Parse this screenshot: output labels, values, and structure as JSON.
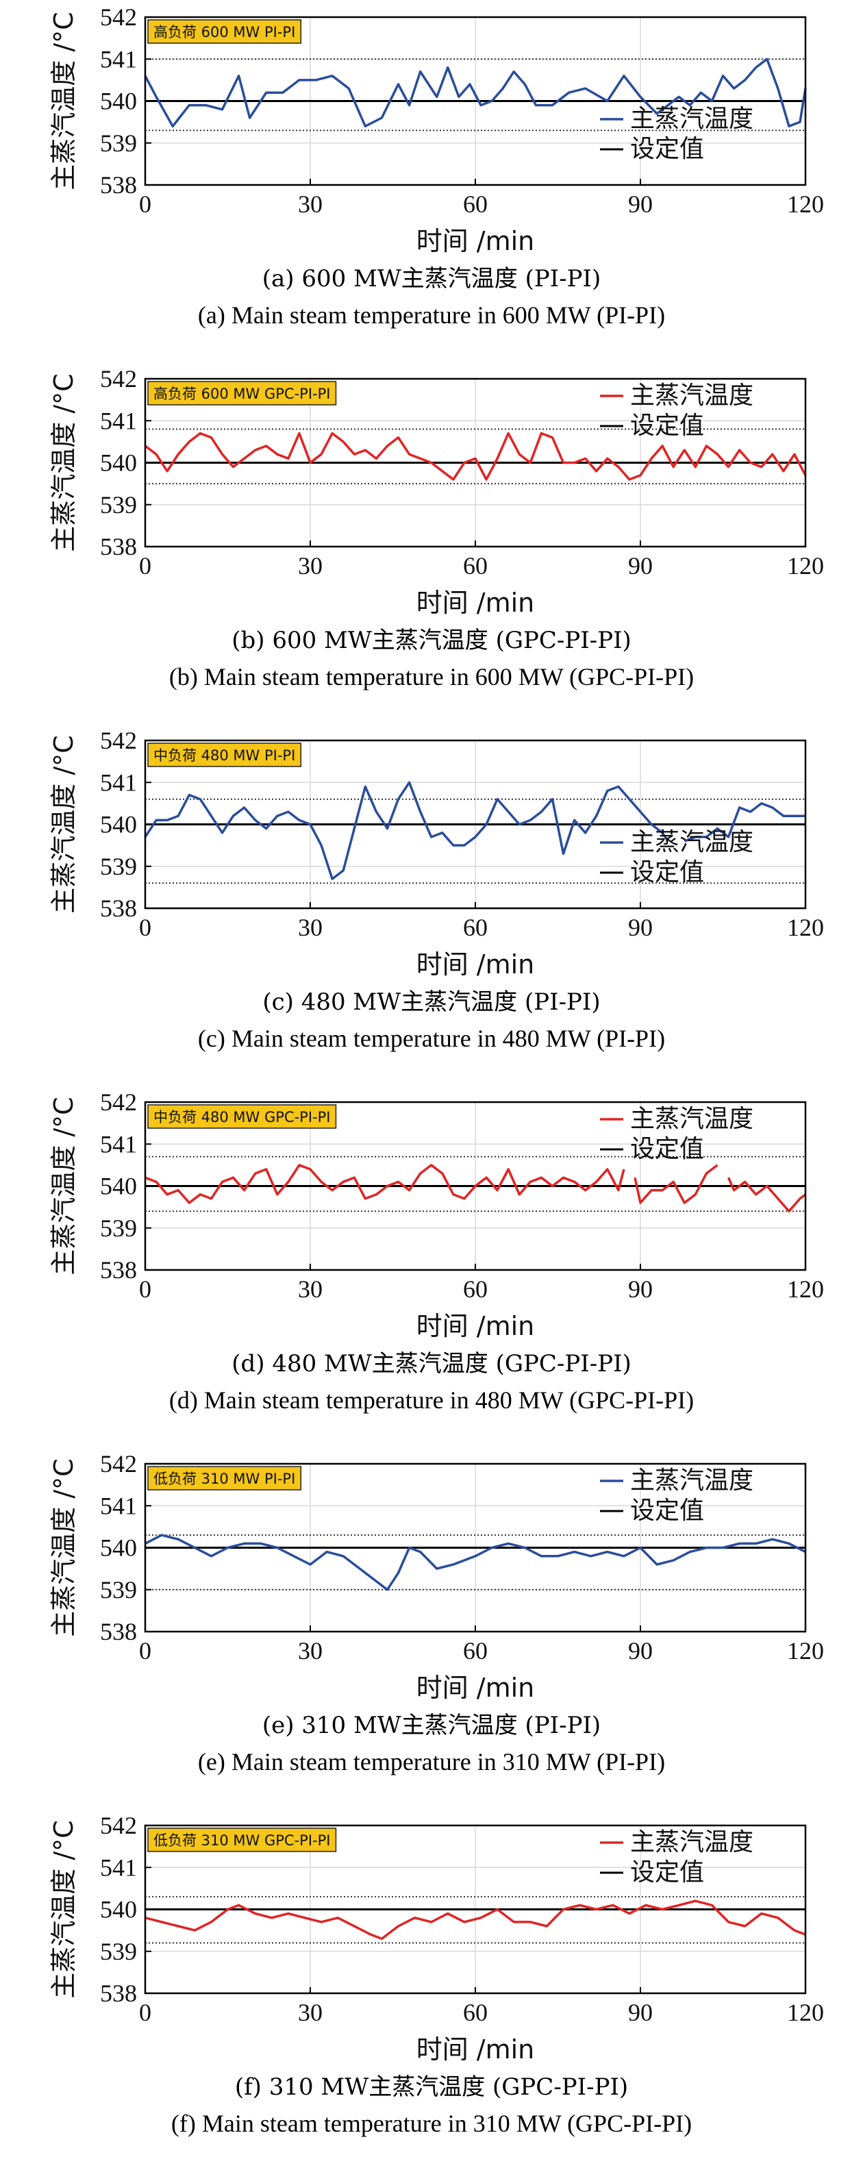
{
  "figure": {
    "colors": {
      "blue": "#2a4d9c",
      "red": "#e02424",
      "setpoint": "#000000",
      "badge_bg": "#f5c518",
      "grid": "#d9d9d9"
    },
    "xlabel": "时间 /min",
    "ylabel": "主蒸汽温度 /°C",
    "legend_series": "主蒸汽温度",
    "legend_setpoint": "设定值"
  },
  "chart_data": [
    {
      "type": "line",
      "badge": "高负荷 600 MW PI-PI",
      "color": "blue",
      "legend_pos": "bottom-right",
      "caption_cn": "(a) 600 MW主蒸汽温度 (PI-PI)",
      "caption_en": "(a) Main steam temperature in 600 MW (PI-PI)",
      "xlim": [
        0,
        120
      ],
      "ylim": [
        538,
        542
      ],
      "xticks": [
        "0",
        "30",
        "60",
        "90",
        "120"
      ],
      "yticks": [
        "538",
        "539",
        "540",
        "541",
        "542"
      ],
      "setpoint": 540,
      "bounds": [
        539.3,
        541.0
      ],
      "series": [
        {
          "name": "主蒸汽温度",
          "gaps": [],
          "x": [
            0,
            2,
            5,
            8,
            11,
            14,
            17,
            19,
            22,
            25,
            28,
            31,
            34,
            37,
            40,
            43,
            46,
            48,
            50,
            53,
            55,
            57,
            59,
            61,
            63,
            65,
            67,
            69,
            71,
            74,
            77,
            80,
            84,
            87,
            90,
            93,
            95,
            97,
            99,
            101,
            103,
            105,
            107,
            109,
            111,
            113,
            115,
            117,
            119,
            120
          ],
          "y": [
            540.6,
            540.1,
            539.4,
            539.9,
            539.9,
            539.8,
            540.6,
            539.6,
            540.2,
            540.2,
            540.5,
            540.5,
            540.6,
            540.3,
            539.4,
            539.6,
            540.4,
            539.9,
            540.7,
            540.1,
            540.8,
            540.1,
            540.4,
            539.9,
            540.0,
            540.3,
            540.7,
            540.4,
            539.9,
            539.9,
            540.2,
            540.3,
            540.0,
            540.6,
            540.1,
            539.7,
            539.9,
            540.1,
            539.9,
            540.2,
            540.0,
            540.6,
            540.3,
            540.5,
            540.8,
            541.0,
            540.3,
            539.4,
            539.5,
            540.3
          ]
        }
      ]
    },
    {
      "type": "line",
      "badge": "高负荷 600 MW GPC-PI-PI",
      "color": "red",
      "legend_pos": "top-right",
      "caption_cn": "(b) 600 MW主蒸汽温度 (GPC-PI-PI)",
      "caption_en": "(b) Main steam temperature in 600 MW (GPC-PI-PI)",
      "xlim": [
        0,
        120
      ],
      "ylim": [
        538,
        542
      ],
      "xticks": [
        "0",
        "30",
        "60",
        "90",
        "120"
      ],
      "yticks": [
        "538",
        "539",
        "540",
        "541",
        "542"
      ],
      "setpoint": 540,
      "bounds": [
        539.5,
        540.8
      ],
      "series": [
        {
          "name": "主蒸汽温度",
          "gaps": [],
          "x": [
            0,
            2,
            4,
            6,
            8,
            10,
            12,
            14,
            16,
            18,
            20,
            22,
            24,
            26,
            28,
            30,
            32,
            34,
            36,
            38,
            40,
            42,
            44,
            46,
            48,
            50,
            52,
            54,
            56,
            58,
            60,
            62,
            64,
            66,
            68,
            70,
            72,
            74,
            76,
            78,
            80,
            82,
            84,
            86,
            88,
            90,
            92,
            94,
            96,
            98,
            100,
            102,
            104,
            106,
            108,
            110,
            112,
            114,
            116,
            118,
            120
          ],
          "y": [
            540.4,
            540.2,
            539.8,
            540.2,
            540.5,
            540.7,
            540.6,
            540.2,
            539.9,
            540.1,
            540.3,
            540.4,
            540.2,
            540.1,
            540.7,
            540.0,
            540.2,
            540.7,
            540.5,
            540.2,
            540.3,
            540.1,
            540.4,
            540.6,
            540.2,
            540.1,
            540.0,
            539.8,
            539.6,
            540.0,
            540.1,
            539.6,
            540.1,
            540.7,
            540.2,
            540.0,
            540.7,
            540.6,
            540.0,
            540.0,
            540.1,
            539.8,
            540.1,
            539.9,
            539.6,
            539.7,
            540.1,
            540.4,
            539.9,
            540.3,
            539.9,
            540.4,
            540.2,
            539.9,
            540.3,
            540.0,
            539.9,
            540.2,
            539.8,
            540.2,
            539.7
          ]
        }
      ]
    },
    {
      "type": "line",
      "badge": "中负荷 480 MW PI-PI",
      "color": "blue",
      "legend_pos": "bottom-right",
      "caption_cn": "(c) 480 MW主蒸汽温度 (PI-PI)",
      "caption_en": "(c) Main steam temperature in 480 MW (PI-PI)",
      "xlim": [
        0,
        120
      ],
      "ylim": [
        538,
        542
      ],
      "xticks": [
        "0",
        "30",
        "60",
        "90",
        "120"
      ],
      "yticks": [
        "538",
        "539",
        "540",
        "541",
        "542"
      ],
      "setpoint": 540,
      "bounds": [
        538.6,
        540.6
      ],
      "series": [
        {
          "name": "主蒸汽温度",
          "gaps": [
            [
              95,
              98
            ]
          ],
          "x": [
            0,
            2,
            4,
            6,
            8,
            10,
            12,
            14,
            16,
            18,
            20,
            22,
            24,
            26,
            28,
            30,
            32,
            34,
            36,
            38,
            40,
            42,
            44,
            46,
            48,
            50,
            52,
            54,
            56,
            58,
            60,
            62,
            64,
            66,
            68,
            70,
            72,
            74,
            76,
            78,
            80,
            82,
            84,
            86,
            88,
            90,
            92,
            94,
            95,
            98,
            100,
            102,
            104,
            106,
            108,
            110,
            112,
            114,
            116,
            118,
            120
          ],
          "y": [
            539.7,
            540.1,
            540.1,
            540.2,
            540.7,
            540.6,
            540.2,
            539.8,
            540.2,
            540.4,
            540.1,
            539.9,
            540.2,
            540.3,
            540.1,
            540.0,
            539.5,
            538.7,
            538.9,
            539.9,
            540.9,
            540.3,
            539.9,
            540.6,
            541.0,
            540.3,
            539.7,
            539.8,
            539.5,
            539.5,
            539.7,
            540.0,
            540.6,
            540.3,
            540.0,
            540.1,
            540.3,
            540.6,
            539.3,
            540.1,
            539.8,
            540.2,
            540.8,
            540.9,
            540.6,
            540.3,
            540.0,
            539.8,
            539.6,
            539.6,
            539.7,
            539.7,
            539.9,
            539.7,
            540.4,
            540.3,
            540.5,
            540.4,
            540.2,
            540.2,
            540.2
          ]
        }
      ]
    },
    {
      "type": "line",
      "badge": "中负荷 480 MW GPC-PI-PI",
      "color": "red",
      "legend_pos": "top-right",
      "caption_cn": "(d) 480 MW主蒸汽温度 (GPC-PI-PI)",
      "caption_en": "(d) Main steam temperature in 480 MW (GPC-PI-PI)",
      "xlim": [
        0,
        120
      ],
      "ylim": [
        538,
        542
      ],
      "xticks": [
        "0",
        "30",
        "60",
        "90",
        "120"
      ],
      "yticks": [
        "538",
        "539",
        "540",
        "541",
        "542"
      ],
      "setpoint": 540,
      "bounds": [
        539.4,
        540.7
      ],
      "series": [
        {
          "name": "主蒸汽温度",
          "gaps": [
            [
              87,
              89
            ],
            [
              104,
              106
            ]
          ],
          "x": [
            0,
            2,
            4,
            6,
            8,
            10,
            12,
            14,
            16,
            18,
            20,
            22,
            24,
            26,
            28,
            30,
            32,
            34,
            36,
            38,
            40,
            42,
            44,
            46,
            48,
            50,
            52,
            54,
            56,
            58,
            60,
            62,
            64,
            66,
            68,
            70,
            72,
            74,
            76,
            78,
            80,
            82,
            84,
            86,
            87,
            89,
            90,
            92,
            94,
            96,
            98,
            100,
            102,
            104,
            106,
            107,
            109,
            111,
            113,
            115,
            117,
            119,
            120
          ],
          "y": [
            540.2,
            540.1,
            539.8,
            539.9,
            539.6,
            539.8,
            539.7,
            540.1,
            540.2,
            539.9,
            540.3,
            540.4,
            539.8,
            540.1,
            540.5,
            540.4,
            540.1,
            539.9,
            540.1,
            540.2,
            539.7,
            539.8,
            540.0,
            540.1,
            539.9,
            540.3,
            540.5,
            540.3,
            539.8,
            539.7,
            540.0,
            540.2,
            539.9,
            540.4,
            539.8,
            540.1,
            540.2,
            540.0,
            540.2,
            540.1,
            539.9,
            540.1,
            540.4,
            539.9,
            540.4,
            540.2,
            539.6,
            539.9,
            539.9,
            540.1,
            539.6,
            539.8,
            540.3,
            540.5,
            540.2,
            539.9,
            540.1,
            539.8,
            540.0,
            539.7,
            539.4,
            539.7,
            539.8
          ]
        }
      ]
    },
    {
      "type": "line",
      "badge": "低负荷 310 MW PI-PI",
      "color": "blue",
      "legend_pos": "top-right",
      "caption_cn": "(e) 310 MW主蒸汽温度 (PI-PI)",
      "caption_en": "(e) Main steam temperature in 310 MW (PI-PI)",
      "xlim": [
        0,
        120
      ],
      "ylim": [
        538,
        542
      ],
      "xticks": [
        "0",
        "30",
        "60",
        "90",
        "120"
      ],
      "yticks": [
        "538",
        "539",
        "540",
        "541",
        "542"
      ],
      "setpoint": 540,
      "bounds": [
        539.0,
        540.3
      ],
      "series": [
        {
          "name": "主蒸汽温度",
          "gaps": [],
          "x": [
            0,
            3,
            6,
            9,
            12,
            15,
            18,
            21,
            24,
            27,
            30,
            33,
            36,
            39,
            42,
            44,
            46,
            48,
            50,
            53,
            56,
            60,
            63,
            66,
            69,
            72,
            75,
            78,
            81,
            84,
            87,
            90,
            93,
            96,
            99,
            102,
            105,
            108,
            111,
            114,
            117,
            120
          ],
          "y": [
            540.1,
            540.3,
            540.2,
            540.0,
            539.8,
            540.0,
            540.1,
            540.1,
            540.0,
            539.8,
            539.6,
            539.9,
            539.8,
            539.5,
            539.2,
            539.0,
            539.4,
            540.0,
            539.9,
            539.5,
            539.6,
            539.8,
            540.0,
            540.1,
            540.0,
            539.8,
            539.8,
            539.9,
            539.8,
            539.9,
            539.8,
            540.0,
            539.6,
            539.7,
            539.9,
            540.0,
            540.0,
            540.1,
            540.1,
            540.2,
            540.1,
            539.9
          ]
        }
      ]
    },
    {
      "type": "line",
      "badge": "低负荷 310 MW GPC-PI-PI",
      "color": "red",
      "legend_pos": "top-right",
      "caption_cn": "(f) 310 MW主蒸汽温度 (GPC-PI-PI)",
      "caption_en": "(f) Main steam temperature in 310 MW (GPC-PI-PI)",
      "xlim": [
        0,
        120
      ],
      "ylim": [
        538,
        542
      ],
      "xticks": [
        "0",
        "30",
        "60",
        "90",
        "120"
      ],
      "yticks": [
        "538",
        "539",
        "540",
        "541",
        "542"
      ],
      "setpoint": 540,
      "bounds": [
        539.2,
        540.3
      ],
      "series": [
        {
          "name": "主蒸汽温度",
          "gaps": [],
          "x": [
            0,
            3,
            6,
            9,
            12,
            15,
            17,
            20,
            23,
            26,
            29,
            32,
            35,
            38,
            41,
            43,
            46,
            49,
            52,
            55,
            58,
            61,
            64,
            67,
            70,
            73,
            76,
            79,
            82,
            85,
            88,
            91,
            94,
            97,
            100,
            103,
            106,
            109,
            112,
            115,
            118,
            120
          ],
          "y": [
            539.8,
            539.7,
            539.6,
            539.5,
            539.7,
            540.0,
            540.1,
            539.9,
            539.8,
            539.9,
            539.8,
            539.7,
            539.8,
            539.6,
            539.4,
            539.3,
            539.6,
            539.8,
            539.7,
            539.9,
            539.7,
            539.8,
            540.0,
            539.7,
            539.7,
            539.6,
            540.0,
            540.1,
            540.0,
            540.1,
            539.9,
            540.1,
            540.0,
            540.1,
            540.2,
            540.1,
            539.7,
            539.6,
            539.9,
            539.8,
            539.5,
            539.4
          ]
        }
      ]
    }
  ]
}
